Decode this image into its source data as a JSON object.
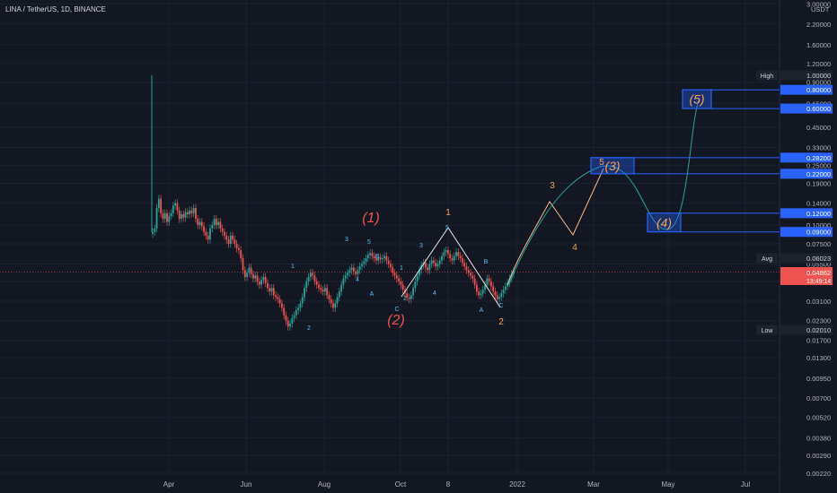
{
  "header": {
    "symbol_title": "LINA / TetherUS, 1D, BINANCE",
    "currency": "USDT"
  },
  "colors": {
    "background": "#131722",
    "grid": "#1c2030",
    "text": "#b2b5be",
    "candle_up": "#26a69a",
    "candle_down": "#ef5350",
    "box": "#2962ff",
    "wave_orange": "#f7a35c",
    "wave_red": "#ef5350",
    "wave_blue": "#4fc3f7",
    "path_teal": "#26a69a",
    "path_peach": "#f8b98a",
    "price_line": "#c1444b"
  },
  "chart_data": {
    "type": "candlestick",
    "scale": "log",
    "ylim": [
      0.0022,
      3.0
    ],
    "y_ticks": [
      "3.00000",
      "2.20000",
      "1.60000",
      "1.20000",
      "0.90000",
      "0.65000",
      "0.45000",
      "0.33000",
      "0.25000",
      "0.19000",
      "0.14000",
      "0.10000",
      "0.07500",
      "0.05500",
      "0.04200",
      "0.03100",
      "0.02300",
      "0.01700",
      "0.01300",
      "0.00950",
      "0.00700",
      "0.00520",
      "0.00380",
      "0.00290",
      "0.00220"
    ],
    "x_ticks": [
      "Apr",
      "Jun",
      "Aug",
      "Oct",
      "8",
      "2022",
      "Mar",
      "May",
      "Jul"
    ],
    "labels": {
      "high": {
        "tag": "High",
        "value": "1.00000"
      },
      "avg": {
        "tag": "Avg",
        "value": "0.06023"
      },
      "low": {
        "tag": "Low",
        "value": "0.02010"
      },
      "last": {
        "value": "0.04862",
        "timer": "13:49:14"
      }
    },
    "target_boxes": [
      {
        "label": "(5)",
        "top": "0.80000",
        "bottom": "0.60000"
      },
      {
        "label": "(3)",
        "top": "0.28200",
        "bottom": "0.22000"
      },
      {
        "label": "(4)",
        "top": "0.12000",
        "bottom": "0.09000"
      }
    ],
    "wave_labels": [
      {
        "text": "(1)",
        "style": "red-large"
      },
      {
        "text": "(2)",
        "style": "red-large"
      },
      {
        "text": "(3)",
        "style": "red-large"
      },
      {
        "text": "(4)",
        "style": "red-large"
      },
      {
        "text": "(5)",
        "style": "red-large"
      },
      {
        "text": "1",
        "style": "orange"
      },
      {
        "text": "2",
        "style": "orange"
      },
      {
        "text": "3",
        "style": "orange"
      },
      {
        "text": "4",
        "style": "orange"
      },
      {
        "text": "5",
        "style": "orange"
      },
      {
        "text": "1",
        "style": "blue"
      },
      {
        "text": "2",
        "style": "blue"
      },
      {
        "text": "3",
        "style": "blue"
      },
      {
        "text": "4",
        "style": "blue"
      },
      {
        "text": "5",
        "style": "blue"
      },
      {
        "text": "A",
        "style": "blue"
      },
      {
        "text": "B",
        "style": "blue"
      },
      {
        "text": "C",
        "style": "blue"
      },
      {
        "text": "1",
        "style": "blue"
      },
      {
        "text": "2",
        "style": "blue"
      },
      {
        "text": "3",
        "style": "blue"
      },
      {
        "text": "4",
        "style": "blue"
      },
      {
        "text": "5",
        "style": "blue"
      },
      {
        "text": "A",
        "style": "blue"
      },
      {
        "text": "B",
        "style": "blue"
      },
      {
        "text": "C",
        "style": "blue"
      }
    ],
    "candles_close": [
      0.09,
      0.095,
      0.13,
      0.15,
      0.12,
      0.11,
      0.12,
      0.105,
      0.115,
      0.12,
      0.135,
      0.14,
      0.125,
      0.11,
      0.118,
      0.112,
      0.122,
      0.118,
      0.125,
      0.12,
      0.13,
      0.11,
      0.1,
      0.105,
      0.098,
      0.09,
      0.085,
      0.08,
      0.095,
      0.1,
      0.11,
      0.1,
      0.105,
      0.095,
      0.09,
      0.085,
      0.08,
      0.075,
      0.085,
      0.08,
      0.075,
      0.07,
      0.068,
      0.06,
      0.05,
      0.045,
      0.048,
      0.052,
      0.047,
      0.044,
      0.046,
      0.042,
      0.04,
      0.043,
      0.045,
      0.041,
      0.038,
      0.036,
      0.038,
      0.034,
      0.033,
      0.032,
      0.03,
      0.028,
      0.025,
      0.023,
      0.021,
      0.022,
      0.024,
      0.025,
      0.027,
      0.028,
      0.03,
      0.033,
      0.038,
      0.042,
      0.045,
      0.048,
      0.046,
      0.042,
      0.04,
      0.038,
      0.037,
      0.036,
      0.038,
      0.034,
      0.032,
      0.03,
      0.028,
      0.03,
      0.033,
      0.036,
      0.04,
      0.044,
      0.046,
      0.048,
      0.05,
      0.052,
      0.049,
      0.047,
      0.05,
      0.053,
      0.055,
      0.057,
      0.06,
      0.063,
      0.065,
      0.062,
      0.06,
      0.058,
      0.061,
      0.059,
      0.06,
      0.062,
      0.058,
      0.055,
      0.052,
      0.048,
      0.046,
      0.044,
      0.042,
      0.04,
      0.037,
      0.035,
      0.033,
      0.032,
      0.034,
      0.038,
      0.042,
      0.046,
      0.05,
      0.054,
      0.056,
      0.052,
      0.05,
      0.055,
      0.058,
      0.056,
      0.053,
      0.055,
      0.058,
      0.062,
      0.066,
      0.068,
      0.064,
      0.06,
      0.058,
      0.062,
      0.066,
      0.062,
      0.06,
      0.056,
      0.053,
      0.05,
      0.048,
      0.046,
      0.044,
      0.04,
      0.036,
      0.034,
      0.035,
      0.037,
      0.04,
      0.044,
      0.042,
      0.039,
      0.036,
      0.034,
      0.032,
      0.033,
      0.035,
      0.037,
      0.039,
      0.041,
      0.044,
      0.047,
      0.049
    ]
  }
}
